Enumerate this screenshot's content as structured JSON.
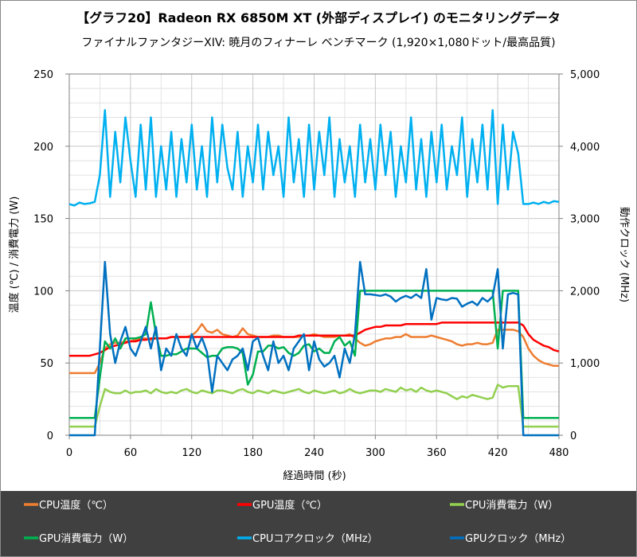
{
  "chart_data": {
    "type": "line",
    "title": "【グラフ20】Radeon RX 6850M XT (外部ディスプレイ) のモニタリングデータ",
    "subtitle": "ファイナルファンタジーXIV: 暁月のフィナーレ ベンチマーク (1,920×1,080ドット/最高品質)",
    "xlabel": "経過時間 (秒)",
    "ylabel_left": "温度 (℃) / 消費電力 (W)",
    "ylabel_right": "動作クロック (MHz)",
    "xlim": [
      0,
      480
    ],
    "ylim_left": [
      0,
      250
    ],
    "ylim_right": [
      0,
      5000
    ],
    "x_ticks": [
      "0",
      "60",
      "120",
      "180",
      "240",
      "300",
      "360",
      "420",
      "480"
    ],
    "y_left_ticks": [
      "0",
      "50",
      "100",
      "150",
      "200",
      "250"
    ],
    "y_right_ticks": [
      "0",
      "1,000",
      "2,000",
      "3,000",
      "4,000",
      "5,000"
    ],
    "grid": true,
    "legend_position": "bottom",
    "x": [
      0,
      5,
      10,
      15,
      20,
      25,
      30,
      35,
      40,
      45,
      50,
      55,
      60,
      65,
      70,
      75,
      80,
      85,
      90,
      95,
      100,
      105,
      110,
      115,
      120,
      125,
      130,
      135,
      140,
      145,
      150,
      155,
      160,
      165,
      170,
      175,
      180,
      185,
      190,
      195,
      200,
      205,
      210,
      215,
      220,
      225,
      230,
      235,
      240,
      245,
      250,
      255,
      260,
      265,
      270,
      275,
      280,
      285,
      290,
      295,
      300,
      305,
      310,
      315,
      320,
      325,
      330,
      335,
      340,
      345,
      350,
      355,
      360,
      365,
      370,
      375,
      380,
      385,
      390,
      395,
      400,
      405,
      410,
      415,
      420,
      425,
      430,
      435,
      440,
      445,
      450,
      455,
      460,
      465,
      470,
      475,
      480
    ],
    "series": [
      {
        "name": "CPU温度（℃）",
        "axis": "left",
        "color": "#ED7D31",
        "values": [
          43,
          43,
          43,
          43,
          43,
          43,
          50,
          60,
          63,
          64,
          64,
          65,
          65,
          66,
          67,
          67,
          66,
          67,
          67,
          67,
          68,
          68,
          68,
          68,
          69,
          72,
          77,
          72,
          71,
          73,
          70,
          69,
          68,
          69,
          74,
          70,
          69,
          68,
          68,
          68,
          69,
          69,
          68,
          68,
          68,
          68,
          69,
          69,
          70,
          69,
          68,
          68,
          68,
          69,
          69,
          70,
          67,
          64,
          62,
          63,
          65,
          66,
          67,
          67,
          68,
          68,
          70,
          68,
          68,
          68,
          68,
          69,
          68,
          67,
          66,
          65,
          63,
          62,
          63,
          63,
          64,
          63,
          63,
          64,
          73,
          73,
          73,
          73,
          72,
          68,
          60,
          55,
          52,
          50,
          49,
          48,
          48
        ]
      },
      {
        "name": "GPU温度（℃）",
        "axis": "left",
        "color": "#FF0000",
        "values": [
          55,
          55,
          55,
          55,
          55,
          56,
          57,
          59,
          61,
          62,
          63,
          64,
          65,
          65,
          66,
          66,
          67,
          67,
          67,
          67,
          68,
          68,
          68,
          68,
          68,
          68,
          68,
          68,
          68,
          68,
          68,
          68,
          68,
          68,
          68,
          68,
          68,
          68,
          68,
          68,
          68,
          68,
          68,
          68,
          68,
          69,
          69,
          69,
          69,
          69,
          69,
          69,
          69,
          69,
          69,
          69,
          69,
          71,
          73,
          74,
          75,
          75,
          76,
          76,
          76,
          76,
          77,
          77,
          77,
          77,
          77,
          77,
          77,
          78,
          78,
          78,
          78,
          78,
          78,
          78,
          78,
          78,
          78,
          78,
          78,
          78,
          78,
          78,
          78,
          76,
          70,
          66,
          64,
          62,
          61,
          59,
          58
        ]
      },
      {
        "name": "CPU消費電力（W）",
        "axis": "left",
        "color": "#92D050",
        "values": [
          6,
          6,
          6,
          6,
          6,
          6,
          20,
          32,
          30,
          29,
          29,
          31,
          29,
          30,
          30,
          31,
          29,
          32,
          30,
          29,
          30,
          29,
          31,
          32,
          30,
          29,
          31,
          30,
          29,
          31,
          31,
          30,
          29,
          31,
          32,
          30,
          29,
          31,
          30,
          29,
          31,
          30,
          29,
          30,
          31,
          32,
          30,
          29,
          31,
          30,
          29,
          30,
          31,
          29,
          30,
          32,
          30,
          29,
          30,
          31,
          31,
          30,
          32,
          31,
          30,
          33,
          31,
          32,
          30,
          33,
          31,
          30,
          31,
          30,
          29,
          27,
          25,
          27,
          26,
          28,
          27,
          26,
          25,
          26,
          35,
          33,
          34,
          34,
          34,
          6,
          6,
          6,
          6,
          6,
          6,
          6,
          6
        ]
      },
      {
        "name": "GPU消費電力（W）",
        "axis": "left",
        "color": "#00B050",
        "values": [
          12,
          12,
          12,
          12,
          12,
          12,
          40,
          65,
          60,
          67,
          60,
          67,
          67,
          67,
          68,
          70,
          92,
          70,
          55,
          55,
          56,
          56,
          58,
          60,
          60,
          60,
          57,
          54,
          55,
          55,
          60,
          61,
          61,
          60,
          57,
          35,
          42,
          58,
          58,
          62,
          62,
          60,
          61,
          57,
          55,
          57,
          62,
          63,
          58,
          60,
          57,
          57,
          65,
          68,
          62,
          65,
          55,
          100,
          100,
          100,
          100,
          100,
          100,
          100,
          100,
          100,
          100,
          100,
          100,
          100,
          100,
          100,
          100,
          100,
          100,
          100,
          100,
          100,
          100,
          100,
          100,
          100,
          100,
          100,
          60,
          100,
          100,
          100,
          100,
          12,
          12,
          12,
          12,
          12,
          12,
          12,
          12
        ]
      },
      {
        "name": "CPUコアクロック（MHz）",
        "axis": "right",
        "color": "#00B0F0",
        "values": [
          3200,
          3180,
          3220,
          3200,
          3210,
          3230,
          3600,
          4500,
          3300,
          4200,
          3500,
          4400,
          3800,
          3300,
          4300,
          3400,
          4400,
          3300,
          4000,
          3400,
          4200,
          3300,
          4100,
          3500,
          4300,
          3400,
          4000,
          3300,
          4400,
          3500,
          4300,
          3700,
          3400,
          4200,
          3300,
          4000,
          3500,
          4300,
          3400,
          4200,
          3600,
          4000,
          3300,
          4400,
          3500,
          4100,
          3300,
          4300,
          3400,
          4200,
          3600,
          4400,
          3300,
          4100,
          3500,
          4000,
          3300,
          4300,
          3500,
          4100,
          3400,
          4300,
          3600,
          4200,
          3300,
          4000,
          3500,
          4400,
          3400,
          4100,
          3300,
          4200,
          3500,
          4300,
          3400,
          4000,
          3600,
          4400,
          3300,
          4100,
          3500,
          4300,
          3400,
          4500,
          3200,
          4300,
          3400,
          4200,
          3900,
          3200,
          3200,
          3220,
          3200,
          3230,
          3210,
          3240,
          3230
        ]
      },
      {
        "name": "GPUクロック（MHz）",
        "axis": "right",
        "color": "#0070C0",
        "values": [
          0,
          0,
          0,
          0,
          0,
          0,
          1200,
          2400,
          1400,
          1000,
          1300,
          1500,
          1200,
          1100,
          1300,
          1500,
          1200,
          1500,
          900,
          1200,
          1100,
          1400,
          1200,
          1100,
          1400,
          1200,
          1350,
          1150,
          600,
          1100,
          1000,
          900,
          1050,
          1100,
          1200,
          900,
          1300,
          1350,
          1100,
          900,
          1300,
          1000,
          1100,
          900,
          1200,
          1300,
          1400,
          900,
          1300,
          1050,
          950,
          1000,
          1100,
          800,
          1200,
          1000,
          1400,
          2400,
          1950,
          1950,
          1940,
          1930,
          1950,
          1920,
          1850,
          1900,
          1930,
          1900,
          1950,
          1900,
          2300,
          1600,
          1900,
          1880,
          1870,
          1900,
          1890,
          1780,
          1820,
          1850,
          1800,
          1900,
          1850,
          1920,
          2300,
          1200,
          1950,
          1970,
          1950,
          0,
          0,
          0,
          0,
          0,
          0,
          0,
          0
        ]
      }
    ]
  }
}
